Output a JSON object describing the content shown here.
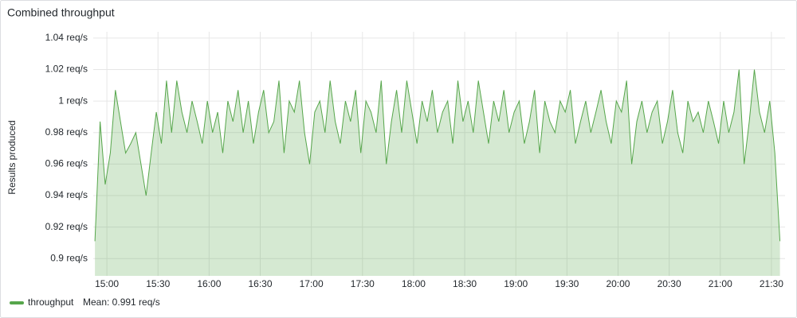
{
  "chart_data": {
    "type": "line",
    "title": "Combined throughput",
    "ylabel": "Results produced",
    "x": [
      "14:53",
      "14:56",
      "14:59",
      "15:02",
      "15:05",
      "15:08",
      "15:11",
      "15:14",
      "15:17",
      "15:20",
      "15:23",
      "15:26",
      "15:29",
      "15:32",
      "15:35",
      "15:38",
      "15:41",
      "15:44",
      "15:47",
      "15:50",
      "15:53",
      "15:56",
      "15:59",
      "16:02",
      "16:05",
      "16:08",
      "16:11",
      "16:14",
      "16:17",
      "16:20",
      "16:23",
      "16:26",
      "16:29",
      "16:32",
      "16:35",
      "16:38",
      "16:41",
      "16:44",
      "16:47",
      "16:50",
      "16:53",
      "16:56",
      "16:59",
      "17:02",
      "17:05",
      "17:08",
      "17:11",
      "17:14",
      "17:17",
      "17:20",
      "17:23",
      "17:26",
      "17:29",
      "17:32",
      "17:35",
      "17:38",
      "17:41",
      "17:44",
      "17:47",
      "17:50",
      "17:53",
      "17:56",
      "17:59",
      "18:02",
      "18:05",
      "18:08",
      "18:11",
      "18:14",
      "18:17",
      "18:20",
      "18:23",
      "18:26",
      "18:29",
      "18:32",
      "18:35",
      "18:38",
      "18:41",
      "18:44",
      "18:47",
      "18:50",
      "18:53",
      "18:56",
      "18:59",
      "19:02",
      "19:05",
      "19:08",
      "19:11",
      "19:14",
      "19:17",
      "19:20",
      "19:23",
      "19:26",
      "19:29",
      "19:32",
      "19:35",
      "19:38",
      "19:41",
      "19:44",
      "19:47",
      "19:50",
      "19:53",
      "19:56",
      "19:59",
      "20:02",
      "20:05",
      "20:08",
      "20:11",
      "20:14",
      "20:17",
      "20:20",
      "20:23",
      "20:26",
      "20:29",
      "20:32",
      "20:35",
      "20:38",
      "20:41",
      "20:44",
      "20:47",
      "20:50",
      "20:53",
      "20:56",
      "20:59",
      "21:02",
      "21:05",
      "21:08",
      "21:11",
      "21:14",
      "21:17",
      "21:20",
      "21:23",
      "21:26",
      "21:29",
      "21:32",
      "21:35"
    ],
    "series": [
      {
        "name": "throughput",
        "legend_text": "Mean: 0.991 req/s",
        "color": "#56a64b",
        "values": [
          0.911,
          0.987,
          0.947,
          0.967,
          1.007,
          0.987,
          0.967,
          0.973,
          0.98,
          0.96,
          0.94,
          0.967,
          0.993,
          0.973,
          1.013,
          0.98,
          1.013,
          0.993,
          0.98,
          1.0,
          0.987,
          0.973,
          1.0,
          0.98,
          0.993,
          0.967,
          1.0,
          0.987,
          1.007,
          0.98,
          1.0,
          0.973,
          0.993,
          1.007,
          0.98,
          0.987,
          1.013,
          0.967,
          1.0,
          0.993,
          1.013,
          0.98,
          0.96,
          0.993,
          1.0,
          0.98,
          1.013,
          0.987,
          0.973,
          1.0,
          0.987,
          1.007,
          0.967,
          1.0,
          0.993,
          0.98,
          1.013,
          0.96,
          0.987,
          1.007,
          0.98,
          1.013,
          0.993,
          0.973,
          1.0,
          0.987,
          1.007,
          0.98,
          0.993,
          1.0,
          0.973,
          1.013,
          0.987,
          1.0,
          0.98,
          1.013,
          0.993,
          0.973,
          1.0,
          0.987,
          1.007,
          0.98,
          0.993,
          1.0,
          0.973,
          0.987,
          1.007,
          0.967,
          1.0,
          0.987,
          0.98,
          1.0,
          0.993,
          1.007,
          0.973,
          0.987,
          1.0,
          0.98,
          0.993,
          1.007,
          0.987,
          0.973,
          1.0,
          0.993,
          1.013,
          0.96,
          0.987,
          1.0,
          0.98,
          0.993,
          1.0,
          0.973,
          0.987,
          1.007,
          0.98,
          0.967,
          1.0,
          0.987,
          0.993,
          0.98,
          1.0,
          0.987,
          0.973,
          1.0,
          0.98,
          0.993,
          1.02,
          0.96,
          0.987,
          1.02,
          0.993,
          0.98,
          1.0,
          0.967,
          0.911
        ]
      }
    ],
    "xlim": [
      "14:52",
      "21:38"
    ],
    "xticks": [
      "15:00",
      "15:30",
      "16:00",
      "16:30",
      "17:00",
      "17:30",
      "18:00",
      "18:30",
      "19:00",
      "19:30",
      "20:00",
      "20:30",
      "21:00",
      "21:30"
    ],
    "ylim": [
      0.889,
      1.044
    ],
    "yticks": [
      {
        "value": 0.9,
        "label": "0.9 req/s"
      },
      {
        "value": 0.92,
        "label": "0.92 req/s"
      },
      {
        "value": 0.94,
        "label": "0.94 req/s"
      },
      {
        "value": 0.96,
        "label": "0.96 req/s"
      },
      {
        "value": 0.98,
        "label": "0.98 req/s"
      },
      {
        "value": 1,
        "label": "1 req/s"
      },
      {
        "value": 1.02,
        "label": "1.02 req/s"
      },
      {
        "value": 1.04,
        "label": "1.04 req/s"
      }
    ],
    "grid": true
  }
}
